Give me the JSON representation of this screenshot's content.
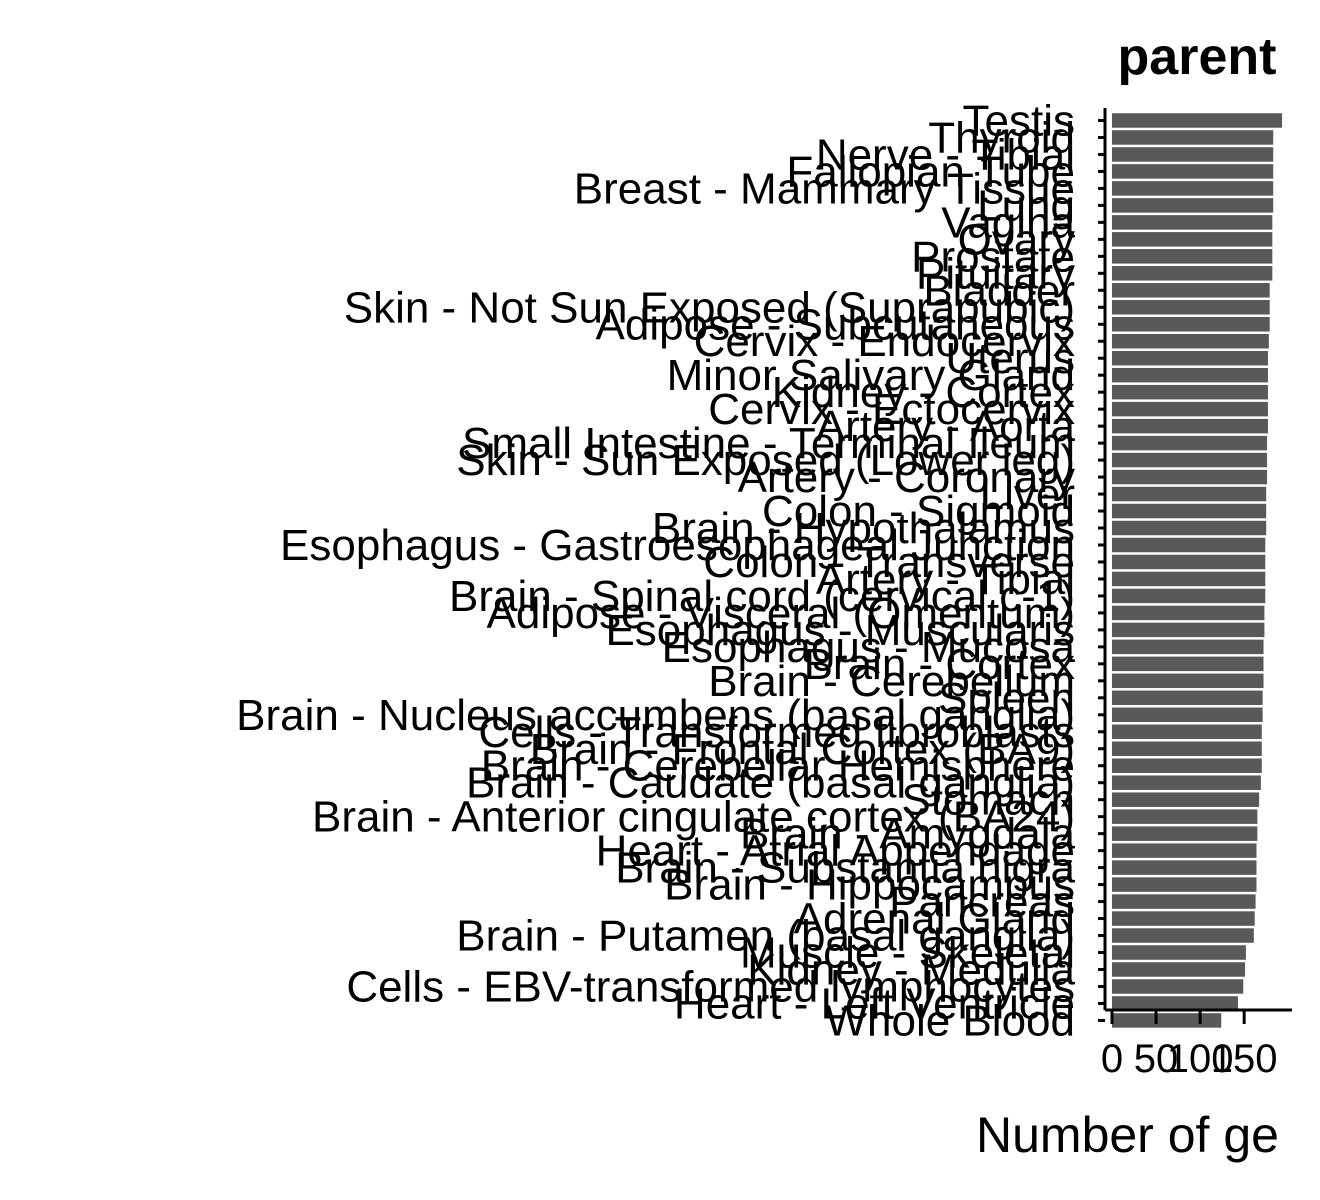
{
  "chart_data": {
    "type": "bar",
    "orientation": "horizontal",
    "facet_title": "parent",
    "xlabel": "Number of ge",
    "ylabel": "",
    "xlim": [
      0,
      200
    ],
    "x_ticks": [
      0,
      50,
      100,
      150
    ],
    "x_tick_labels": [
      "0",
      "50",
      "100",
      "150"
    ],
    "grid": false,
    "bar_color": "#595959",
    "categories": [
      "Testis",
      "Thyroid",
      "Nerve - Tibial",
      "Fallopian Tube",
      "Breast - Mammary Tissue",
      "Lung",
      "Vagina",
      "Ovary",
      "Prostate",
      "Pituitary",
      "Bladder",
      "Skin - Not Sun Exposed (Suprapubic)",
      "Adipose - Subcutaneous",
      "Cervix - Endocervix",
      "Uterus",
      "Minor Salivary Gland",
      "Kidney - Cortex",
      "Cervix - Ectocervix",
      "Artery - Aorta",
      "Small Intestine - Terminal Ileum",
      "Skin - Sun Exposed (Lower leg)",
      "Artery - Coronary",
      "Liver",
      "Colon - Sigmoid",
      "Brain - Hypothalamus",
      "Esophagus - Gastroesophageal Junction",
      "Colon - Transverse",
      "Artery - Tibial",
      "Brain - Spinal cord (cervical c-1)",
      "Adipose - Visceral (Omentum)",
      "Esophagus - Muscularis",
      "Esophagus - Mucosa",
      "Brain - Cortex",
      "Brain - Cerebellum",
      "Spleen",
      "Brain - Nucleus accumbens (basal ganglia)",
      "Cells - Transformed fibroblasts",
      "Brain - Frontal Cortex (BA9)",
      "Brain - Cerebellar Hemisphere",
      "Brain - Caudate (basal ganglia)",
      "Stomach",
      "Brain - Anterior cingulate cortex (BA24)",
      "Brain - Amygdala",
      "Heart - Atrial Appendage",
      "Brain - Substantia nigra",
      "Brain - Hippocampus",
      "Pancreas",
      "Adrenal Gland",
      "Brain - Putamen (basal ganglia)",
      "Muscle - Skeletal",
      "Kidney - Medulla",
      "Cells - EBV-transformed lymphocytes",
      "Heart - Left Ventricle",
      "Whole Blood"
    ],
    "values": [
      193,
      183,
      183,
      183,
      183,
      183,
      182,
      182,
      182,
      182,
      179,
      179,
      179,
      178,
      177,
      177,
      177,
      177,
      177,
      176,
      176,
      176,
      175,
      175,
      175,
      174,
      174,
      174,
      174,
      173,
      173,
      172,
      172,
      172,
      171,
      171,
      170,
      170,
      170,
      169,
      167,
      165,
      165,
      164,
      164,
      164,
      163,
      162,
      161,
      152,
      151,
      149,
      143,
      124
    ]
  }
}
